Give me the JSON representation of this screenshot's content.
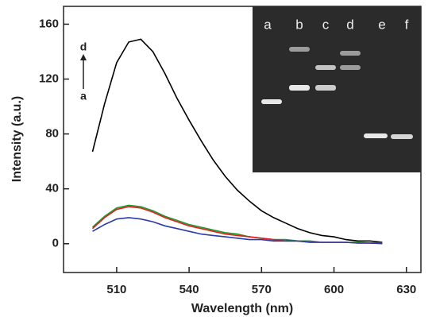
{
  "chart_data": {
    "type": "line",
    "xlabel": "Wavelength (nm)",
    "ylabel": "Intensity (a.u.)",
    "x": [
      500,
      505,
      510,
      515,
      520,
      525,
      530,
      535,
      540,
      545,
      550,
      555,
      560,
      565,
      570,
      575,
      580,
      585,
      590,
      595,
      600,
      605,
      610,
      615,
      620
    ],
    "series": [
      {
        "color": "#000000",
        "values": [
          67,
          102,
          132,
          147,
          149,
          140,
          124,
          106,
          90,
          75,
          61,
          49,
          39,
          31,
          24,
          19,
          15,
          11,
          8,
          6,
          5,
          3,
          2,
          2,
          1
        ]
      },
      {
        "color": "#1a9a2a",
        "values": [
          12,
          20,
          26,
          28,
          27,
          24,
          20,
          17,
          14,
          12,
          10,
          8,
          7,
          5,
          4,
          3,
          3,
          2,
          2,
          1,
          1,
          1,
          1,
          0.5,
          0.5
        ]
      },
      {
        "color": "#e0201a",
        "values": [
          11,
          19,
          25,
          27,
          26,
          23,
          19,
          16,
          13,
          11,
          9,
          7,
          6,
          5,
          4,
          3,
          2,
          2,
          1,
          1,
          1,
          1,
          0.5,
          0.5,
          0.5
        ]
      },
      {
        "color": "#2a3aa8",
        "values": [
          9,
          14,
          18,
          19,
          18,
          16,
          13,
          11,
          9,
          7,
          6,
          5,
          4,
          3,
          3,
          2,
          2,
          2,
          1,
          1,
          1,
          1,
          0.5,
          0.5,
          0
        ]
      }
    ],
    "xlim": [
      488,
      636
    ],
    "xticks": [
      510,
      540,
      570,
      600,
      630
    ],
    "ylim": [
      -21,
      173
    ],
    "yticks": [
      0,
      40,
      80,
      120,
      160
    ],
    "annotations": [
      "d",
      "a"
    ],
    "inset_lanes": [
      "a",
      "b",
      "c",
      "d",
      "e",
      "f"
    ]
  }
}
